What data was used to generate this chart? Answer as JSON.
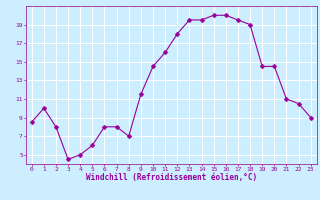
{
  "x": [
    0,
    1,
    2,
    3,
    4,
    5,
    6,
    7,
    8,
    9,
    10,
    11,
    12,
    13,
    14,
    15,
    16,
    17,
    18,
    19,
    20,
    21,
    22,
    23
  ],
  "y": [
    8.5,
    10.0,
    8.0,
    4.5,
    5.0,
    6.0,
    8.0,
    8.0,
    7.0,
    11.5,
    14.5,
    16.0,
    18.0,
    19.5,
    19.5,
    20.0,
    20.0,
    19.5,
    19.0,
    14.5,
    14.5,
    11.0,
    10.5,
    9.0
  ],
  "line_color": "#990099",
  "marker": "D",
  "marker_size": 2.5,
  "bg_color": "#cceeff",
  "grid_color": "#ffffff",
  "xlabel": "Windchill (Refroidissement éolien,°C)",
  "xlabel_color": "#990099",
  "tick_color": "#990099",
  "ylim": [
    4,
    21
  ],
  "yticks": [
    5,
    7,
    9,
    11,
    13,
    15,
    17,
    19
  ],
  "xlim": [
    -0.5,
    23.5
  ],
  "xticks": [
    0,
    1,
    2,
    3,
    4,
    5,
    6,
    7,
    8,
    9,
    10,
    11,
    12,
    13,
    14,
    15,
    16,
    17,
    18,
    19,
    20,
    21,
    22,
    23
  ]
}
